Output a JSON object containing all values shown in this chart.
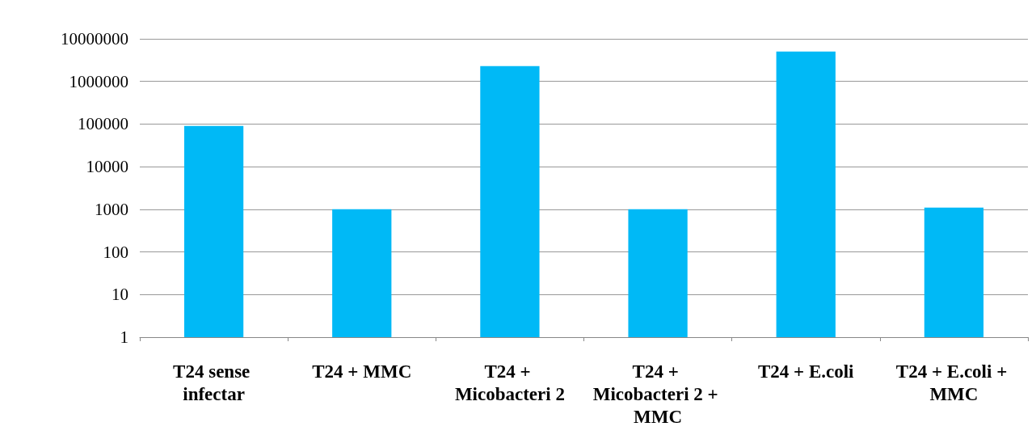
{
  "chart_data": {
    "type": "bar",
    "categories": [
      "T24 sense infectar",
      "T24 + MMC",
      "T24 + Micobacteri 2",
      "T24 + Micobacteri 2 + MMC",
      "T24 + E.coli",
      "T24 + E.coli + MMC"
    ],
    "values": [
      90000,
      1000,
      2300000,
      1000,
      5000000,
      1100
    ],
    "color": "#00b9f6",
    "log": "y",
    "ylim": [
      1,
      10000000
    ],
    "yticks": [
      1,
      10,
      100,
      1000,
      10000,
      100000,
      1000000,
      10000000
    ],
    "grid": "y"
  }
}
